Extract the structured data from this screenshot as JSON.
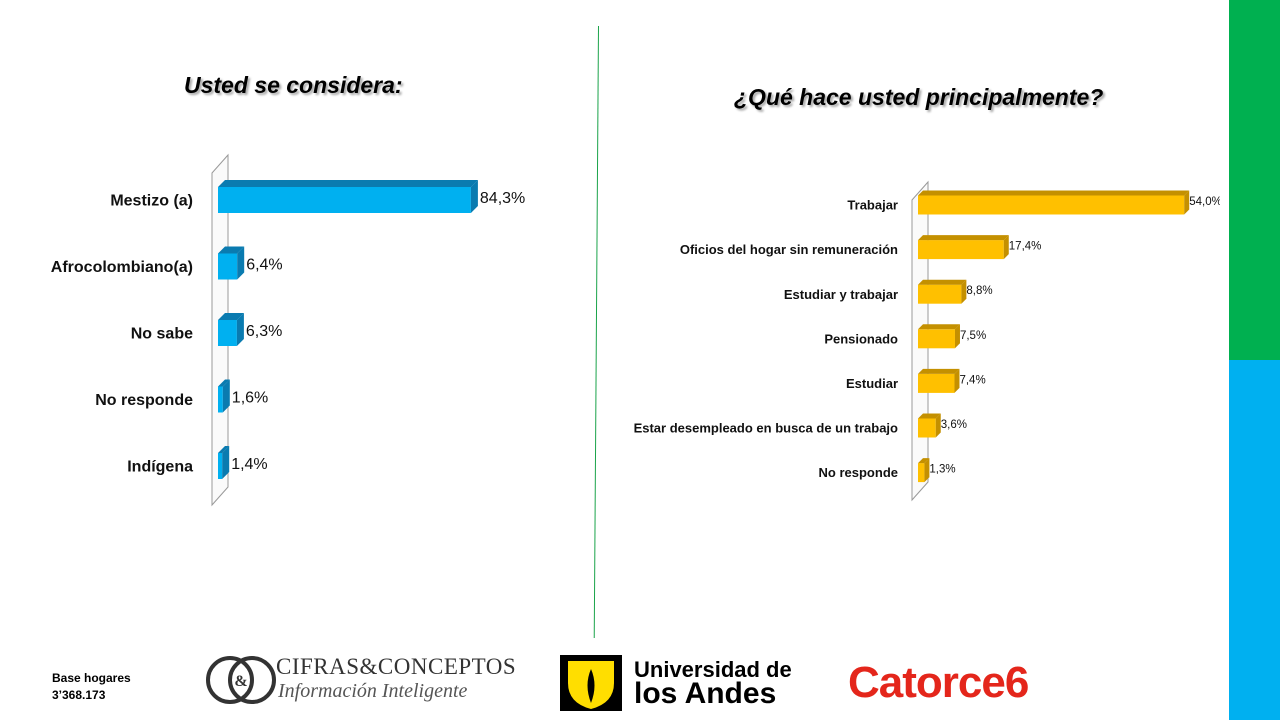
{
  "colors": {
    "side_top": "#00b050",
    "side_bottom": "#00b0f0",
    "left_bar": "#00b0f0",
    "left_bar_dark": "#0a7bb0",
    "right_bar": "#ffc000",
    "right_bar_dark": "#c49000"
  },
  "footer": {
    "base_label": "Base hogares",
    "base_value": "3’368.173"
  },
  "logos": {
    "cifras_line1": "CIFRAS&CONCEPTOS",
    "cifras_line2": "Información Inteligente",
    "cifras_mark": "&",
    "andes_line1": "Universidad de",
    "andes_line2": "los Andes",
    "catorce": "Catorce6"
  },
  "chart_data": [
    {
      "type": "bar",
      "orientation": "horizontal",
      "title": "Usted se considera:",
      "categories": [
        "Mestizo (a)",
        "Afrocolombiano(a)",
        "No sabe",
        "No responde",
        "Indígena"
      ],
      "values": [
        84.3,
        6.4,
        6.3,
        1.6,
        1.4
      ],
      "value_labels": [
        "84,3%",
        "6,4%",
        "6,3%",
        "1,6%",
        "1,4%"
      ],
      "xlim": [
        0,
        100
      ],
      "grid": false,
      "legend": "none"
    },
    {
      "type": "bar",
      "orientation": "horizontal",
      "title": "¿Qué hace usted principalmente?",
      "categories": [
        "Trabajar",
        "Oficios del hogar sin remuneración",
        "Estudiar y trabajar",
        "Pensionado",
        "Estudiar",
        "Estar desempleado en busca de un trabajo",
        "No responde"
      ],
      "values": [
        54.0,
        17.4,
        8.8,
        7.5,
        7.4,
        3.6,
        1.3
      ],
      "value_labels": [
        "54,0%",
        "17,4%",
        "8,8%",
        "7,5%",
        "7,4%",
        "3,6%",
        "1,3%"
      ],
      "xlim": [
        0,
        100
      ],
      "grid": false,
      "legend": "none"
    }
  ]
}
